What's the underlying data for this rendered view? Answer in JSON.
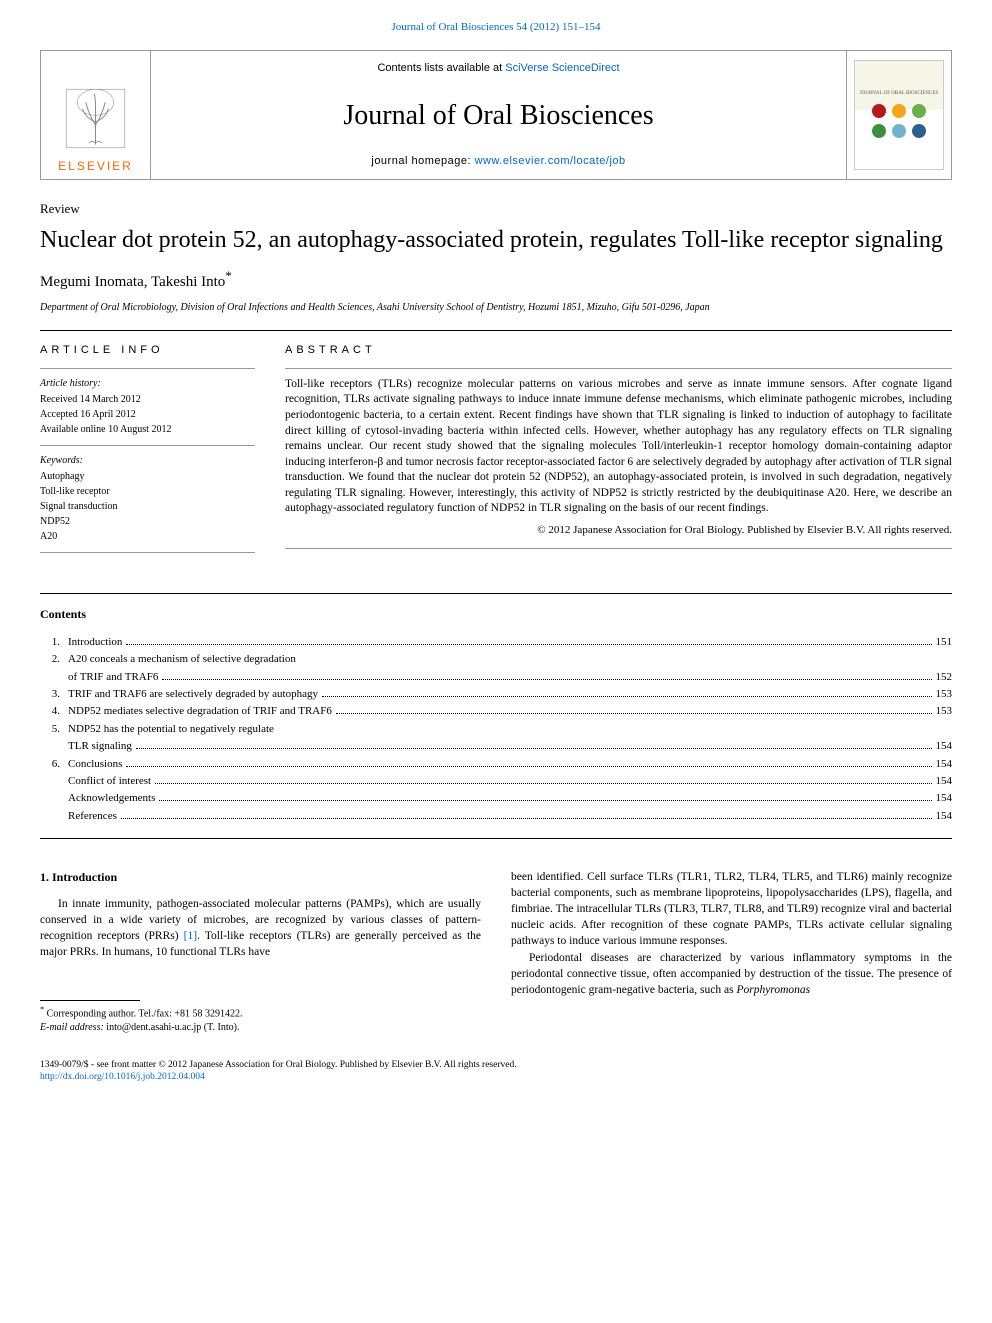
{
  "journal_ref_top": "Journal of Oral Biosciences 54 (2012) 151–154",
  "header": {
    "contents_avail_prefix": "Contents lists available at ",
    "sciverse": "SciVerse ScienceDirect",
    "journal_name": "Journal of Oral Biosciences",
    "homepage_label": "journal homepage: ",
    "homepage_url": "www.elsevier.com/locate/job",
    "elsevier": "ELSEVIER",
    "cover_caption": "JOURNAL OF ORAL BIOSCIENCES"
  },
  "article": {
    "type": "Review",
    "title": "Nuclear dot protein 52, an autophagy-associated protein, regulates Toll-like receptor signaling",
    "authors": "Megumi Inomata, Takeshi Into",
    "corr_marker": "*",
    "affiliation": "Department of Oral Microbiology, Division of Oral Infections and Health Sciences, Asahi University School of Dentistry, Hozumi 1851, Mizuho, Gifu 501-0296, Japan"
  },
  "info": {
    "heading": "ARTICLE INFO",
    "history_label": "Article history:",
    "received": "Received 14 March 2012",
    "accepted": "Accepted 16 April 2012",
    "online": "Available online 10 August 2012",
    "keywords_label": "Keywords:",
    "kw1": "Autophagy",
    "kw2": "Toll-like receptor",
    "kw3": "Signal transduction",
    "kw4": "NDP52",
    "kw5": "A20"
  },
  "abstract": {
    "heading": "ABSTRACT",
    "text": "Toll-like receptors (TLRs) recognize molecular patterns on various microbes and serve as innate immune sensors. After cognate ligand recognition, TLRs activate signaling pathways to induce innate immune defense mechanisms, which eliminate pathogenic microbes, including periodontogenic bacteria, to a certain extent. Recent findings have shown that TLR signaling is linked to induction of autophagy to facilitate direct killing of cytosol-invading bacteria within infected cells. However, whether autophagy has any regulatory effects on TLR signaling remains unclear. Our recent study showed that the signaling molecules Toll/interleukin-1 receptor homology domain-containing adaptor inducing interferon-β and tumor necrosis factor receptor-associated factor 6 are selectively degraded by autophagy after activation of TLR signal transduction. We found that the nuclear dot protein 52 (NDP52), an autophagy-associated protein, is involved in such degradation, negatively regulating TLR signaling. However, interestingly, this activity of NDP52 is strictly restricted by the deubiquitinase A20. Here, we describe an autophagy-associated regulatory function of NDP52 in TLR signaling on the basis of our recent findings.",
    "copyright": "© 2012 Japanese Association for Oral Biology. Published by Elsevier B.V. All rights reserved."
  },
  "contents": {
    "heading": "Contents",
    "items": [
      {
        "num": "1.",
        "title": "Introduction",
        "page": "151",
        "dots": true
      },
      {
        "num": "2.",
        "title": "A20 conceals a mechanism of selective degradation",
        "page": "",
        "dots": false
      },
      {
        "num": "",
        "title": "of TRIF and TRAF6",
        "page": "152",
        "dots": true,
        "sub": true
      },
      {
        "num": "3.",
        "title": "TRIF and TRAF6 are selectively degraded by autophagy",
        "page": "153",
        "dots": true
      },
      {
        "num": "4.",
        "title": "NDP52 mediates selective degradation of TRIF and TRAF6",
        "page": "153",
        "dots": true
      },
      {
        "num": "5.",
        "title": "NDP52 has the potential to negatively regulate",
        "page": "",
        "dots": false
      },
      {
        "num": "",
        "title": "TLR signaling",
        "page": "154",
        "dots": true,
        "sub": true
      },
      {
        "num": "6.",
        "title": "Conclusions",
        "page": "154",
        "dots": true
      },
      {
        "num": "",
        "title": "Conflict of interest",
        "page": "154",
        "dots": true,
        "sub": true
      },
      {
        "num": "",
        "title": "Acknowledgements",
        "page": "154",
        "dots": true,
        "sub": true
      },
      {
        "num": "",
        "title": "References",
        "page": "154",
        "dots": true,
        "sub": true
      }
    ]
  },
  "body": {
    "section1_heading": "1.  Introduction",
    "col1_p1a": "In innate immunity, pathogen-associated molecular patterns (PAMPs), which are usually conserved in a wide variety of microbes, are recognized by various classes of pattern-recognition receptors (PRRs) ",
    "col1_ref1": "[1]",
    "col1_p1b": ". Toll-like receptors (TLRs) are generally perceived as the major PRRs. In humans, 10 functional TLRs have",
    "col2_p1": "been identified. Cell surface TLRs (TLR1, TLR2, TLR4, TLR5, and TLR6) mainly recognize bacterial components, such as membrane lipoproteins, lipopolysaccharides (LPS), flagella, and fimbriae. The intracellular TLRs (TLR3, TLR7, TLR8, and TLR9) recognize viral and bacterial nucleic acids. After recognition of these cognate PAMPs, TLRs activate cellular signaling pathways to induce various immune responses.",
    "col2_p2a": "Periodontal diseases are characterized by various inflammatory symptoms in the periodontal connective tissue, often accompanied by destruction of the tissue. The presence of periodontogenic gram-negative bacteria, such as ",
    "col2_species": "Porphyromonas"
  },
  "footnote": {
    "corr_text": "Corresponding author. Tel./fax: +81 58 3291422.",
    "email_label": "E-mail address:",
    "email": " into@dent.asahi-u.ac.jp (T. Into)."
  },
  "bottom": {
    "issn_line": "1349-0079/$ - see front matter © 2012 Japanese Association for Oral Biology. Published by Elsevier B.V. All rights reserved.",
    "doi": "http://dx.doi.org/10.1016/j.job.2012.04.004"
  },
  "colors": {
    "link": "#0066cc",
    "elsevier_orange": "#ff6600",
    "rule": "#000000",
    "light_rule": "#999999",
    "cover_dots": [
      "#b5191e",
      "#f7a51a",
      "#6ab04a",
      "#3b8f3e",
      "#6fb4cc",
      "#2c5f8f"
    ]
  }
}
